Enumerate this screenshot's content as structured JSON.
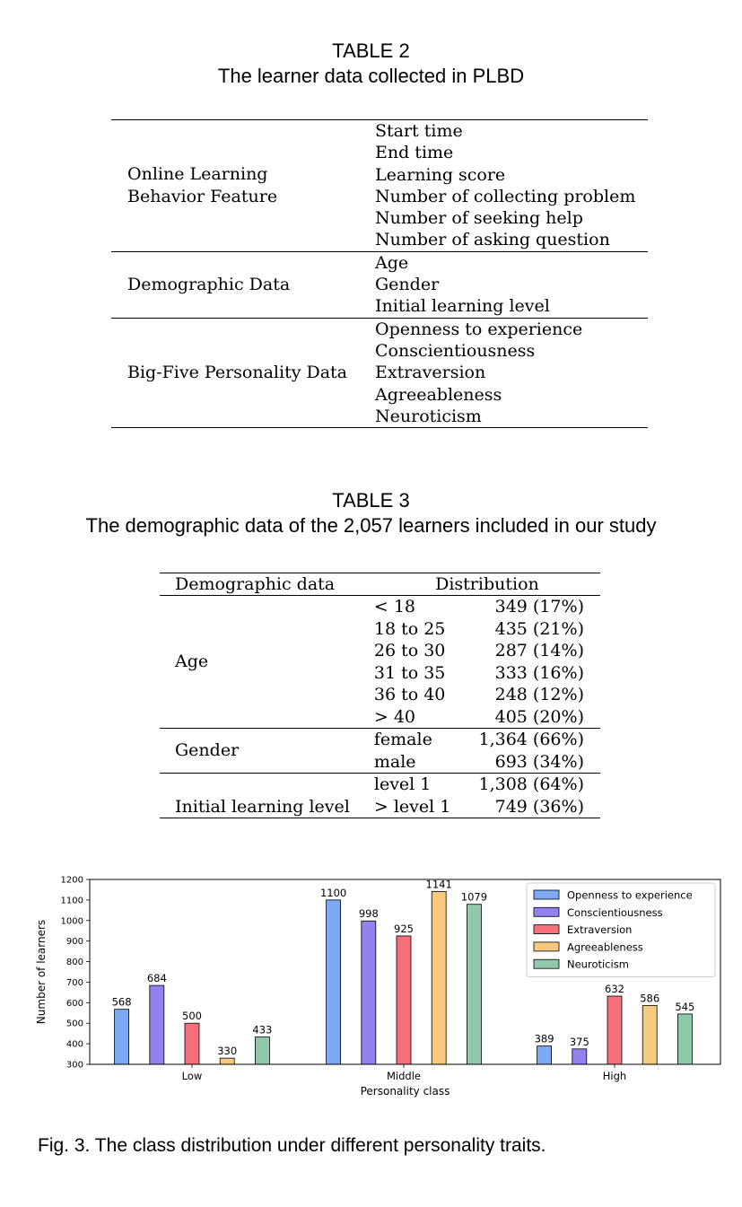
{
  "table2": {
    "caption_label": "TABLE 2",
    "caption_title": "The learner data collected in PLBD",
    "groups": [
      {
        "label_line1": "Online Learning",
        "label_line2": "Behavior Feature",
        "items": [
          "Start time",
          "End time",
          "Learning score",
          "Number of collecting problem",
          "Number of seeking help",
          "Number of asking question"
        ]
      },
      {
        "label_line1": "Demographic Data",
        "label_line2": "",
        "items": [
          "Age",
          "Gender",
          "Initial learning level"
        ]
      },
      {
        "label_line1": "Big-Five Personality Data",
        "label_line2": "",
        "items": [
          "Openness to experience",
          "Conscientiousness",
          "Extraversion",
          "Agreeableness",
          "Neuroticism"
        ]
      }
    ]
  },
  "table3": {
    "caption_label": "TABLE 3",
    "caption_title": "The demographic data of the 2,057 learners included in our study",
    "header_col1": "Demographic data",
    "header_col2": "Distribution",
    "groups": [
      {
        "label": "Age",
        "ranges": [
          "< 18",
          "18 to 25",
          "26 to 30",
          "31 to 35",
          "36 to 40",
          "> 40"
        ],
        "values": [
          "349 (17%)",
          "435 (21%)",
          "287 (14%)",
          "333 (16%)",
          "248 (12%)",
          "405 (20%)"
        ]
      },
      {
        "label": "Gender",
        "ranges": [
          "female",
          "male"
        ],
        "values": [
          "1,364 (66%)",
          "693 (34%)"
        ]
      },
      {
        "label": "Initial learning level",
        "ranges": [
          "level 1",
          "> level 1"
        ],
        "values": [
          "1,308 (64%)",
          "749 (36%)"
        ]
      }
    ]
  },
  "chart_data": {
    "type": "bar",
    "categories": [
      "Low",
      "Middle",
      "High"
    ],
    "xlabel": "Personality class",
    "ylabel": "Number of learners",
    "ylim": [
      300,
      1200
    ],
    "yticks": [
      300,
      400,
      500,
      600,
      700,
      800,
      900,
      1000,
      1100,
      1200
    ],
    "grid": false,
    "legend_position": "top-right",
    "series": [
      {
        "name": "Openness to experience",
        "color": "#7ba9f2",
        "values": [
          568,
          1100,
          389
        ]
      },
      {
        "name": "Conscientiousness",
        "color": "#9580ef",
        "values": [
          684,
          998,
          375
        ]
      },
      {
        "name": "Extraversion",
        "color": "#f5707a",
        "values": [
          500,
          925,
          632
        ]
      },
      {
        "name": "Agreeableness",
        "color": "#f7c97e",
        "values": [
          330,
          1141,
          586
        ]
      },
      {
        "name": "Neuroticism",
        "color": "#90c9a9",
        "values": [
          433,
          1079,
          545
        ]
      }
    ]
  },
  "figure": {
    "caption": "Fig. 3. The class distribution under different personality traits."
  }
}
